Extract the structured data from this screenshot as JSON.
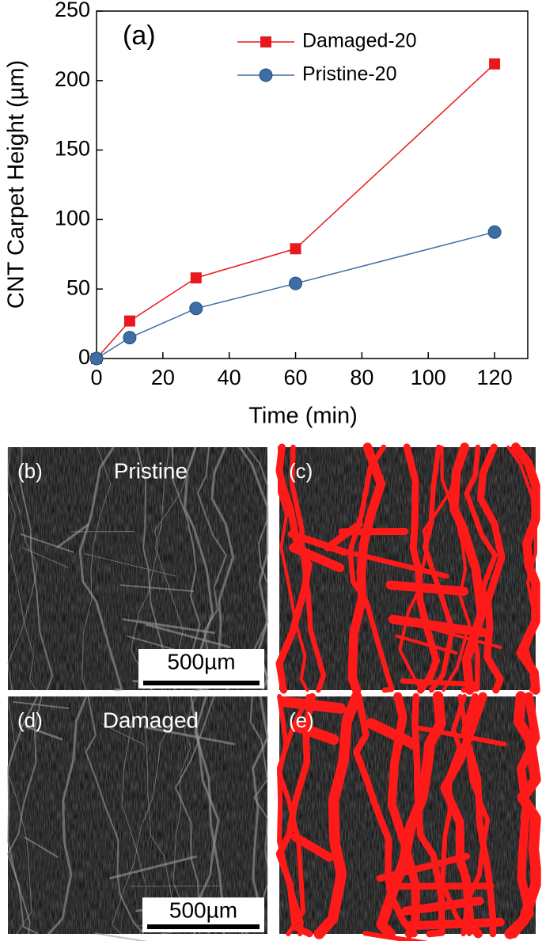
{
  "chart_data": {
    "type": "line",
    "annotation": "(a)",
    "x_label": "Time (min)",
    "y_label": "CNT Carpet Height (µm)",
    "x": [
      0,
      10,
      30,
      60,
      120
    ],
    "series": [
      {
        "name": "Damaged-20",
        "color": "#e8191c",
        "marker": "square",
        "values": [
          0,
          27,
          58,
          79,
          212
        ]
      },
      {
        "name": "Pristine-20",
        "color": "#3c6ea6",
        "marker": "circle",
        "values": [
          0,
          15,
          36,
          54,
          91
        ]
      }
    ],
    "xlim": [
      0,
      130
    ],
    "xticks": [
      0,
      20,
      40,
      60,
      80,
      100,
      120
    ],
    "ylim": [
      0,
      250
    ],
    "yticks": [
      0,
      50,
      100,
      150,
      200,
      250
    ],
    "grid": false,
    "legend": "upper right"
  },
  "panels": [
    {
      "label": "(b)",
      "caption": "Pristine",
      "scale_bar": "500µm"
    },
    {
      "label": "(c)"
    },
    {
      "label": "(d)",
      "caption": "Damaged",
      "scale_bar": "500µm"
    },
    {
      "label": "(e)"
    }
  ]
}
